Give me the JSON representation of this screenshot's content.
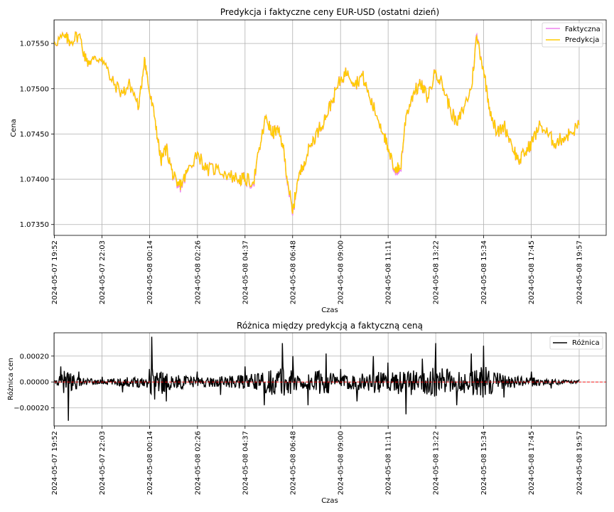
{
  "chart_data": [
    {
      "type": "line",
      "title": "Predykcja i faktyczne ceny EUR-USD (ostatni dzień)",
      "xlabel": "Czas",
      "ylabel": "Cena",
      "x_ticks": [
        "2024-05-07 19:52",
        "2024-05-07 22:03",
        "2024-05-08 00:14",
        "2024-05-08 02:26",
        "2024-05-08 04:37",
        "2024-05-08 06:48",
        "2024-05-08 09:00",
        "2024-05-08 11:11",
        "2024-05-08 13:22",
        "2024-05-08 15:34",
        "2024-05-08 17:45",
        "2024-05-08 19:57"
      ],
      "y_ticks": [
        "1.07350",
        "1.07400",
        "1.07450",
        "1.07500",
        "1.07550"
      ],
      "y_tick_values": [
        1.0735,
        1.074,
        1.0745,
        1.075,
        1.0755
      ],
      "ylim": [
        1.07338,
        1.07576
      ],
      "grid": true,
      "legend_position": "upper right",
      "x": [
        "2024-05-07 19:52",
        "2024-05-07 20:20",
        "2024-05-07 20:35",
        "2024-05-07 21:00",
        "2024-05-07 21:20",
        "2024-05-07 21:40",
        "2024-05-07 22:03",
        "2024-05-07 22:30",
        "2024-05-07 23:00",
        "2024-05-07 23:20",
        "2024-05-07 23:45",
        "2024-05-08 00:00",
        "2024-05-08 00:14",
        "2024-05-08 00:30",
        "2024-05-08 00:45",
        "2024-05-08 01:00",
        "2024-05-08 01:15",
        "2024-05-08 01:30",
        "2024-05-08 01:45",
        "2024-05-08 02:00",
        "2024-05-08 02:26",
        "2024-05-08 02:50",
        "2024-05-08 03:20",
        "2024-05-08 03:50",
        "2024-05-08 04:20",
        "2024-05-08 04:37",
        "2024-05-08 05:00",
        "2024-05-08 05:20",
        "2024-05-08 05:35",
        "2024-05-08 05:50",
        "2024-05-08 06:05",
        "2024-05-08 06:20",
        "2024-05-08 06:35",
        "2024-05-08 06:48",
        "2024-05-08 07:00",
        "2024-05-08 07:20",
        "2024-05-08 07:40",
        "2024-05-08 08:00",
        "2024-05-08 08:20",
        "2024-05-08 08:40",
        "2024-05-08 09:00",
        "2024-05-08 09:20",
        "2024-05-08 09:40",
        "2024-05-08 10:00",
        "2024-05-08 10:20",
        "2024-05-08 10:40",
        "2024-05-08 11:00",
        "2024-05-08 11:11",
        "2024-05-08 11:30",
        "2024-05-08 11:45",
        "2024-05-08 12:00",
        "2024-05-08 12:20",
        "2024-05-08 12:40",
        "2024-05-08 13:00",
        "2024-05-08 13:22",
        "2024-05-08 13:40",
        "2024-05-08 14:00",
        "2024-05-08 14:20",
        "2024-05-08 14:40",
        "2024-05-08 15:00",
        "2024-05-08 15:15",
        "2024-05-08 15:34",
        "2024-05-08 15:50",
        "2024-05-08 16:10",
        "2024-05-08 16:30",
        "2024-05-08 16:50",
        "2024-05-08 17:10",
        "2024-05-08 17:30",
        "2024-05-08 17:45",
        "2024-05-08 18:10",
        "2024-05-08 18:30",
        "2024-05-08 18:50",
        "2024-05-08 19:10",
        "2024-05-08 19:30",
        "2024-05-08 19:57"
      ],
      "series": [
        {
          "name": "Faktyczna",
          "color": "#ee82ee",
          "values": [
            1.07552,
            1.07557,
            1.07552,
            1.0756,
            1.0753,
            1.07532,
            1.07535,
            1.07508,
            1.07495,
            1.07505,
            1.0748,
            1.07535,
            1.07495,
            1.07465,
            1.0742,
            1.07435,
            1.0741,
            1.0739,
            1.07395,
            1.0741,
            1.0743,
            1.0741,
            1.07412,
            1.07405,
            1.074,
            1.074,
            1.07395,
            1.0744,
            1.0747,
            1.0745,
            1.07455,
            1.0744,
            1.07395,
            1.0736,
            1.07395,
            1.0742,
            1.0744,
            1.07455,
            1.0747,
            1.0749,
            1.0751,
            1.0752,
            1.07505,
            1.07515,
            1.0749,
            1.0747,
            1.0745,
            1.0743,
            1.0741,
            1.0741,
            1.0747,
            1.07495,
            1.07505,
            1.0749,
            1.0752,
            1.07505,
            1.0748,
            1.0746,
            1.0748,
            1.075,
            1.0756,
            1.0752,
            1.0748,
            1.0745,
            1.0746,
            1.0744,
            1.0742,
            1.0743,
            1.0744,
            1.0746,
            1.0745,
            1.0744,
            1.07445,
            1.0745,
            1.0746
          ]
        },
        {
          "name": "Predykcja",
          "color": "#ffcc00",
          "values": [
            1.07552,
            1.07557,
            1.07552,
            1.0756,
            1.0753,
            1.07532,
            1.07535,
            1.07508,
            1.07495,
            1.07505,
            1.0748,
            1.07535,
            1.07495,
            1.07465,
            1.0742,
            1.07435,
            1.0741,
            1.07392,
            1.07397,
            1.0741,
            1.0743,
            1.0741,
            1.07412,
            1.07405,
            1.074,
            1.074,
            1.07397,
            1.0744,
            1.0747,
            1.0745,
            1.07455,
            1.0744,
            1.07397,
            1.07362,
            1.07395,
            1.0742,
            1.0744,
            1.07455,
            1.0747,
            1.0749,
            1.0751,
            1.0752,
            1.07505,
            1.07515,
            1.0749,
            1.0747,
            1.0745,
            1.0743,
            1.07412,
            1.07412,
            1.0747,
            1.07495,
            1.07505,
            1.0749,
            1.0752,
            1.07505,
            1.0748,
            1.0746,
            1.0748,
            1.075,
            1.07558,
            1.0752,
            1.0748,
            1.0745,
            1.0746,
            1.0744,
            1.0742,
            1.0743,
            1.0744,
            1.0746,
            1.0745,
            1.0744,
            1.07445,
            1.0745,
            1.0746
          ]
        }
      ]
    },
    {
      "type": "line",
      "title": "Różnica między predykcją a faktyczną ceną",
      "xlabel": "Czas",
      "ylabel": "Różnica cen",
      "x_ticks": [
        "2024-05-07 19:52",
        "2024-05-07 22:03",
        "2024-05-08 00:14",
        "2024-05-08 02:26",
        "2024-05-08 04:37",
        "2024-05-08 06:48",
        "2024-05-08 09:00",
        "2024-05-08 11:11",
        "2024-05-08 13:22",
        "2024-05-08 15:34",
        "2024-05-08 17:45",
        "2024-05-08 19:57"
      ],
      "y_ticks": [
        "−0.00020",
        "0.00000",
        "0.00020"
      ],
      "y_tick_values": [
        -0.0002,
        0.0,
        0.0002
      ],
      "ylim": [
        -0.00034,
        0.00038
      ],
      "grid": true,
      "legend_position": "upper right",
      "zero_line_color": "#ff0000",
      "x": [
        "2024-05-07 19:52",
        "2024-05-07 20:10",
        "2024-05-07 20:30",
        "2024-05-07 21:00",
        "2024-05-07 22:03",
        "2024-05-07 23:00",
        "2024-05-08 00:14",
        "2024-05-08 00:20",
        "2024-05-08 01:00",
        "2024-05-08 02:26",
        "2024-05-08 03:30",
        "2024-05-08 04:37",
        "2024-05-08 05:30",
        "2024-05-08 06:20",
        "2024-05-08 06:48",
        "2024-05-08 07:30",
        "2024-05-08 08:20",
        "2024-05-08 09:00",
        "2024-05-08 09:45",
        "2024-05-08 10:30",
        "2024-05-08 11:11",
        "2024-05-08 12:00",
        "2024-05-08 12:45",
        "2024-05-08 13:22",
        "2024-05-08 14:20",
        "2024-05-08 15:00",
        "2024-05-08 15:34",
        "2024-05-08 16:30",
        "2024-05-08 17:45",
        "2024-05-08 18:40",
        "2024-05-08 19:57"
      ],
      "series": [
        {
          "name": "Różnica",
          "color": "#000000",
          "values": [
            1e-05,
            0.00012,
            -0.0003,
            8e-05,
            4e-05,
            -8e-05,
            0.0001,
            0.00035,
            -0.00015,
            8e-05,
            -0.0001,
            0.00012,
            -0.00018,
            0.0003,
            0.0002,
            -0.00018,
            0.00022,
            0.0001,
            -0.00015,
            0.0002,
            0.00015,
            -0.00025,
            0.00018,
            0.0003,
            -0.00018,
            0.00022,
            0.00028,
            -0.00012,
            8e-05,
            -5e-05,
            2e-05
          ]
        }
      ]
    }
  ]
}
